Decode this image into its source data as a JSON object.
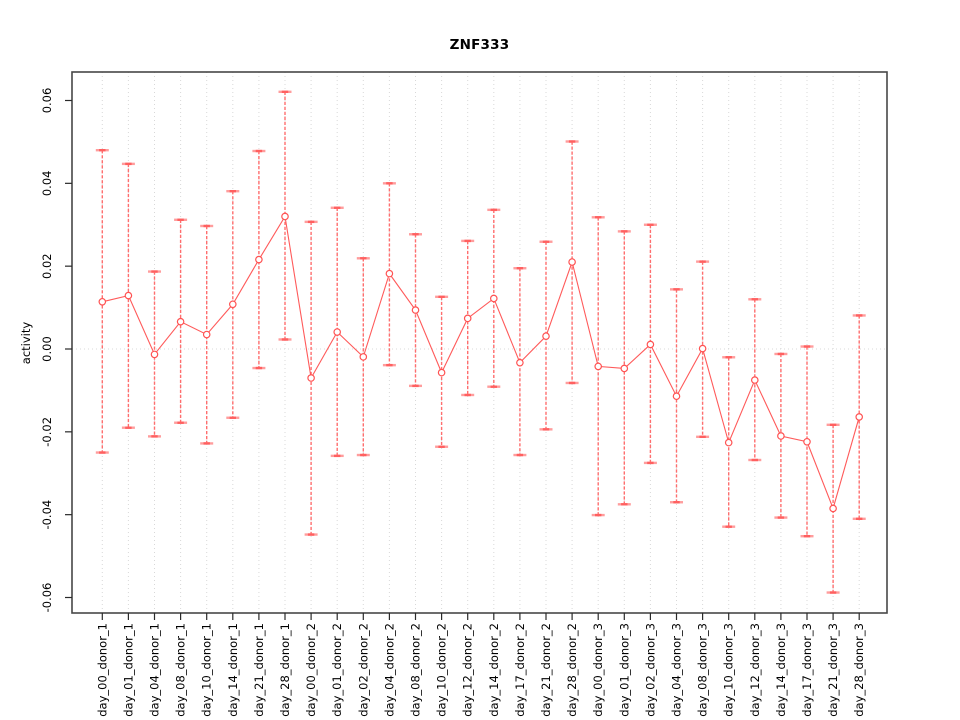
{
  "chart_data": {
    "type": "line",
    "title": "ZNF333",
    "ylabel": "activity",
    "xlabel": "",
    "legend": "none",
    "grid": "vertical dotted gridline at every category; dotted horizontal reference line at y=0",
    "marker": "open-circle with error bars",
    "ylim": [
      -0.064,
      0.0665
    ],
    "ytick_values": [
      0.06,
      0.04,
      0.02,
      0.0,
      -0.02,
      -0.04,
      -0.06
    ],
    "ytick_labels": [
      "0.06",
      "0.04",
      "0.02",
      "0.00",
      "-0.02",
      "-0.04",
      "-0.06"
    ],
    "categories": [
      "day_00_donor_1",
      "day_01_donor_1",
      "day_04_donor_1",
      "day_08_donor_1",
      "day_10_donor_1",
      "day_14_donor_1",
      "day_21_donor_1",
      "day_28_donor_1",
      "day_00_donor_2",
      "day_01_donor_2",
      "day_02_donor_2",
      "day_04_donor_2",
      "day_08_donor_2",
      "day_10_donor_2",
      "day_12_donor_2",
      "day_14_donor_2",
      "day_17_donor_2",
      "day_21_donor_2",
      "day_28_donor_2",
      "day_00_donor_3",
      "day_01_donor_3",
      "day_02_donor_3",
      "day_04_donor_3",
      "day_08_donor_3",
      "day_10_donor_3",
      "day_12_donor_3",
      "day_14_donor_3",
      "day_17_donor_3",
      "day_21_donor_3",
      "day_28_donor_3"
    ],
    "series": [
      {
        "name": "activity",
        "values": [
          0.0114,
          0.0129,
          -0.0013,
          0.0066,
          0.0035,
          0.0108,
          0.0216,
          0.032,
          -0.007,
          0.0041,
          -0.0019,
          0.0182,
          0.0094,
          -0.0057,
          0.0074,
          0.0122,
          -0.0033,
          0.0031,
          0.021,
          -0.0042,
          -0.0047,
          0.0011,
          -0.0114,
          0.0001,
          -0.0226,
          -0.0075,
          -0.021,
          -0.0224,
          -0.0385,
          -0.0164
        ],
        "error_low": [
          -0.025,
          -0.019,
          -0.0211,
          -0.0178,
          -0.0228,
          -0.0166,
          -0.0046,
          0.0023,
          -0.0448,
          -0.0258,
          -0.0256,
          -0.0039,
          -0.0089,
          -0.0236,
          -0.0111,
          -0.0091,
          -0.0256,
          -0.0194,
          -0.0082,
          -0.0401,
          -0.0375,
          -0.0275,
          -0.037,
          -0.0212,
          -0.0429,
          -0.0268,
          -0.0407,
          -0.0452,
          -0.0588,
          -0.041
        ],
        "error_high": [
          0.048,
          0.0447,
          0.0187,
          0.0312,
          0.0297,
          0.0381,
          0.0478,
          0.0621,
          0.0307,
          0.0341,
          0.0219,
          0.04,
          0.0277,
          0.0126,
          0.0261,
          0.0336,
          0.0195,
          0.0259,
          0.0501,
          0.0318,
          0.0284,
          0.03,
          0.0144,
          0.0211,
          -0.002,
          0.012,
          -0.0012,
          0.0006,
          -0.0183,
          0.0081
        ]
      }
    ],
    "colors": {
      "point": "#ff5252",
      "line": "#ff5a5a",
      "error_bar": "#ff6e6e",
      "error_cap_outer": "#ff9d9d",
      "error_cap_inner": "#ff6060",
      "grid": "#d8d8d8",
      "axis_box": "#474747",
      "tick": "#2a2a2a",
      "text": "#000000",
      "background": "#ffffff"
    }
  }
}
